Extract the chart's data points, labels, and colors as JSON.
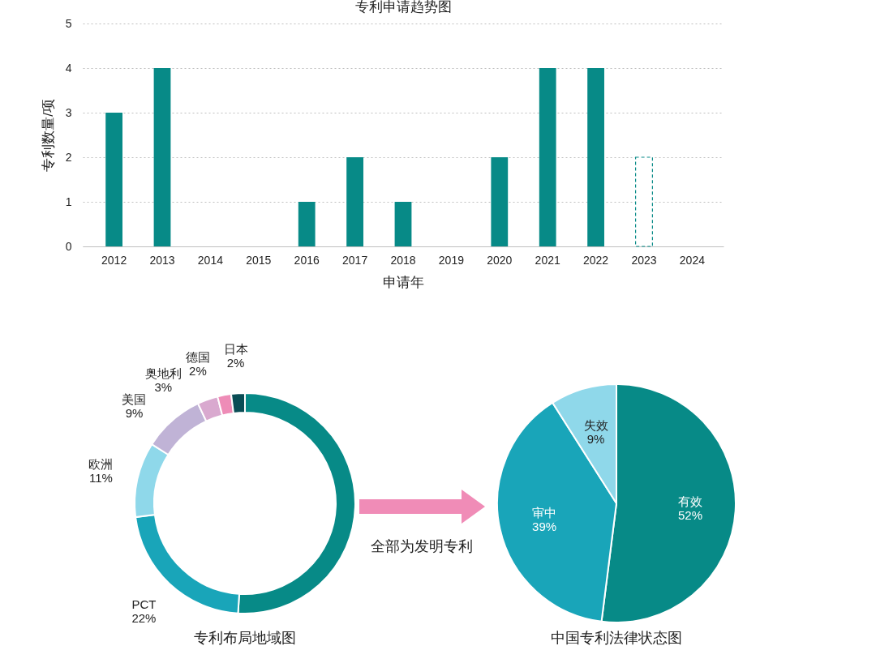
{
  "chart_data": [
    {
      "type": "bar",
      "title": "专利申请趋势图",
      "xlabel": "申请年",
      "ylabel": "专利数量/项",
      "categories": [
        "2012",
        "2013",
        "2014",
        "2015",
        "2016",
        "2017",
        "2018",
        "2019",
        "2020",
        "2021",
        "2022",
        "2023",
        "2024"
      ],
      "series": [
        {
          "color": "#078a87",
          "values": [
            3,
            4,
            0,
            0,
            1,
            2,
            1,
            0,
            2,
            4,
            4,
            null,
            0
          ]
        },
        {
          "color": "#078a87",
          "line_style": "dashed",
          "values": [
            null,
            null,
            null,
            null,
            null,
            null,
            null,
            null,
            null,
            null,
            null,
            2,
            null
          ]
        }
      ],
      "ylim": [
        0,
        5
      ],
      "yticks": [
        0,
        1,
        2,
        3,
        4,
        5
      ],
      "grid": "y",
      "legend": false
    },
    {
      "type": "donut",
      "title": "专利布局地域图",
      "categories": [
        null,
        "PCT",
        "欧洲",
        "美国",
        "奥地利",
        "德国",
        "日本"
      ],
      "values": [
        51,
        22,
        11,
        9,
        3,
        2,
        2
      ],
      "value_labels": [
        null,
        "22%",
        "11%",
        "9%",
        "3%",
        "2%",
        "2%"
      ],
      "colors": [
        "#078a87",
        "#19a5b9",
        "#8fd8ea",
        "#c0b3d6",
        "#d9a9cf",
        "#ee8cb7",
        "#0a4d55"
      ],
      "annotations": [
        "全部为发明专利"
      ],
      "legend": false
    },
    {
      "type": "pie",
      "title": "中国专利法律状态图",
      "categories": [
        "有效",
        "审中",
        "失效"
      ],
      "values": [
        52,
        39,
        9
      ],
      "value_labels": [
        "52%",
        "39%",
        "9%"
      ],
      "colors": [
        "#078a87",
        "#19a5b9",
        "#8fd8ea"
      ],
      "legend": false
    }
  ]
}
